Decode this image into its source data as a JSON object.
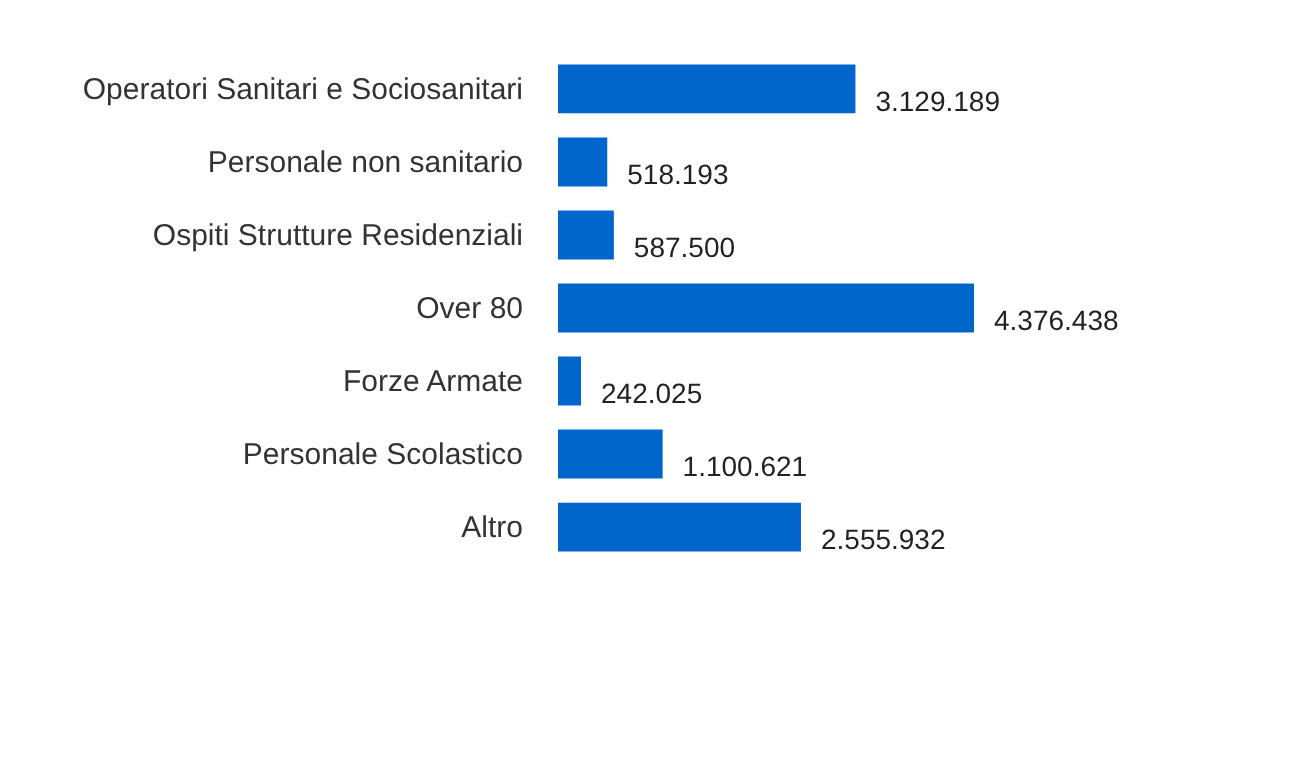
{
  "chart_data": {
    "type": "bar",
    "orientation": "horizontal",
    "categories": [
      "Operatori Sanitari e Sociosanitari",
      "Personale non sanitario",
      "Ospiti Strutture Residenziali",
      "Over 80",
      "Forze Armate",
      "Personale Scolastico",
      "Altro"
    ],
    "values": [
      3129189,
      518193,
      587500,
      4376438,
      242025,
      1100621,
      2555932
    ],
    "value_labels": [
      "3.129.189",
      "518.193",
      "587.500",
      "4.376.438",
      "242.025",
      "1.100.621",
      "2.555.932"
    ],
    "color": "#0066cc"
  }
}
